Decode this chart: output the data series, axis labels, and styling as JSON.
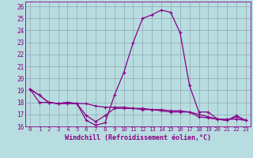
{
  "xlabel": "Windchill (Refroidissement éolien,°C)",
  "xlim": [
    -0.5,
    23.5
  ],
  "ylim": [
    16,
    26.4
  ],
  "yticks": [
    16,
    17,
    18,
    19,
    20,
    21,
    22,
    23,
    24,
    25,
    26
  ],
  "xticks": [
    0,
    1,
    2,
    3,
    4,
    5,
    6,
    7,
    8,
    9,
    10,
    11,
    12,
    13,
    14,
    15,
    16,
    17,
    18,
    19,
    20,
    21,
    22,
    23
  ],
  "bg_color": "#b8dde0",
  "line_color": "#880088",
  "grid_color": "#8899aa",
  "hours": [
    0,
    1,
    2,
    3,
    4,
    5,
    6,
    7,
    8,
    9,
    10,
    11,
    12,
    13,
    14,
    15,
    16,
    17,
    18,
    19,
    20,
    21,
    22,
    23
  ],
  "line1": [
    19.1,
    18.6,
    18.0,
    17.9,
    18.0,
    17.9,
    16.5,
    16.1,
    16.3,
    18.6,
    20.5,
    23.0,
    25.0,
    25.3,
    25.7,
    25.5,
    23.8,
    19.4,
    17.2,
    17.2,
    16.6,
    16.5,
    16.9,
    16.5
  ],
  "line2": [
    19.1,
    18.0,
    18.0,
    17.9,
    17.9,
    17.9,
    17.9,
    17.7,
    17.6,
    17.6,
    17.6,
    17.5,
    17.5,
    17.4,
    17.4,
    17.3,
    17.3,
    17.2,
    17.0,
    16.8,
    16.6,
    16.6,
    16.6,
    16.5
  ],
  "line3": [
    19.1,
    18.6,
    18.0,
    17.9,
    18.0,
    17.9,
    16.9,
    16.4,
    16.9,
    17.5,
    17.5,
    17.5,
    17.4,
    17.4,
    17.3,
    17.2,
    17.2,
    17.2,
    16.8,
    16.7,
    16.6,
    16.5,
    16.8,
    16.5
  ]
}
